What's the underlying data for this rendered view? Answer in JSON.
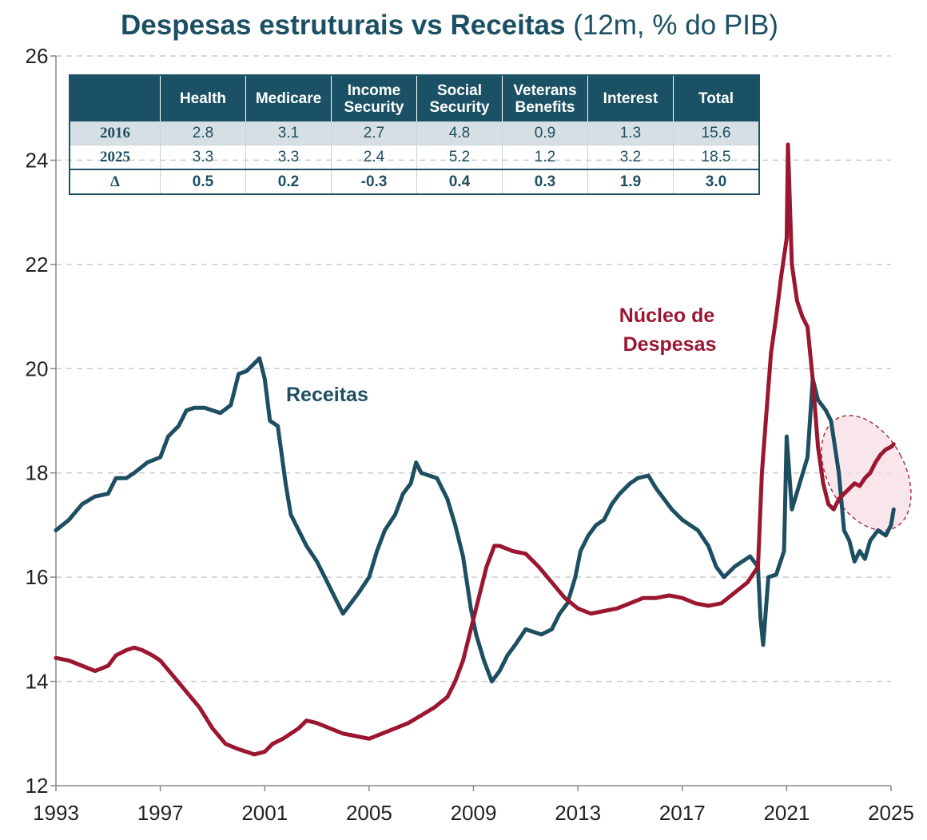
{
  "title": {
    "bold": "Despesas estruturais vs Receitas",
    "rest": " (12m, % do PIB)"
  },
  "colors": {
    "receitas": "#1d4f61",
    "despesas": "#9b1630",
    "grid": "#cccccc",
    "highlight": "#f6dde3",
    "highlight_border": "#a8324a"
  },
  "table": {
    "headers": [
      "",
      "Health",
      "Medicare",
      "Income Security",
      "Social Security",
      "Veterans Benefits",
      "Interest",
      "Total"
    ],
    "rows": [
      {
        "label": "2016",
        "values": [
          "2.8",
          "3.1",
          "2.7",
          "4.8",
          "0.9",
          "1.3",
          "15.6"
        ]
      },
      {
        "label": "2025",
        "values": [
          "3.3",
          "3.3",
          "2.4",
          "5.2",
          "1.2",
          "3.2",
          "18.5"
        ]
      },
      {
        "label": "Δ",
        "values": [
          "0.5",
          "0.2",
          "-0.3",
          "0.4",
          "0.3",
          "1.9",
          "3.0"
        ]
      }
    ]
  },
  "chart_data": {
    "type": "line",
    "title": "Despesas estruturais vs Receitas (12m, % do PIB)",
    "xlabel": "",
    "ylabel": "",
    "xlim": [
      1993,
      2025
    ],
    "ylim": [
      12,
      26
    ],
    "x_ticks": [
      "1993",
      "1997",
      "2001",
      "2005",
      "2009",
      "2013",
      "2017",
      "2021",
      "2025"
    ],
    "y_ticks": [
      "12",
      "14",
      "16",
      "18",
      "20",
      "22",
      "24",
      "26"
    ],
    "grid": "horizontal dashed",
    "annotations": [
      "Receitas",
      "Núcleo de Despesas"
    ],
    "highlight_region": {
      "x": [
        2023.0,
        2025.1
      ],
      "y": [
        17.0,
        19.0
      ]
    },
    "series": [
      {
        "name": "Receitas",
        "color": "#1d4f61",
        "points": [
          [
            1993.0,
            16.9
          ],
          [
            1993.5,
            17.1
          ],
          [
            1994.0,
            17.4
          ],
          [
            1994.5,
            17.55
          ],
          [
            1995.0,
            17.6
          ],
          [
            1995.3,
            17.9
          ],
          [
            1995.7,
            17.9
          ],
          [
            1996.0,
            18.0
          ],
          [
            1996.5,
            18.2
          ],
          [
            1997.0,
            18.3
          ],
          [
            1997.3,
            18.7
          ],
          [
            1997.7,
            18.9
          ],
          [
            1998.0,
            19.2
          ],
          [
            1998.3,
            19.25
          ],
          [
            1998.7,
            19.25
          ],
          [
            1999.0,
            19.2
          ],
          [
            1999.3,
            19.15
          ],
          [
            1999.7,
            19.3
          ],
          [
            2000.0,
            19.9
          ],
          [
            2000.3,
            19.95
          ],
          [
            2000.6,
            20.1
          ],
          [
            2000.8,
            20.2
          ],
          [
            2001.0,
            19.8
          ],
          [
            2001.2,
            19.0
          ],
          [
            2001.5,
            18.9
          ],
          [
            2001.8,
            17.8
          ],
          [
            2002.0,
            17.2
          ],
          [
            2002.3,
            16.9
          ],
          [
            2002.6,
            16.6
          ],
          [
            2003.0,
            16.3
          ],
          [
            2003.3,
            16.0
          ],
          [
            2003.7,
            15.6
          ],
          [
            2004.0,
            15.3
          ],
          [
            2004.3,
            15.5
          ],
          [
            2004.6,
            15.7
          ],
          [
            2005.0,
            16.0
          ],
          [
            2005.3,
            16.5
          ],
          [
            2005.6,
            16.9
          ],
          [
            2006.0,
            17.2
          ],
          [
            2006.3,
            17.6
          ],
          [
            2006.6,
            17.8
          ],
          [
            2006.8,
            18.2
          ],
          [
            2007.0,
            18.0
          ],
          [
            2007.3,
            17.95
          ],
          [
            2007.6,
            17.9
          ],
          [
            2008.0,
            17.5
          ],
          [
            2008.3,
            17.0
          ],
          [
            2008.6,
            16.4
          ],
          [
            2008.9,
            15.4
          ],
          [
            2009.1,
            14.9
          ],
          [
            2009.4,
            14.4
          ],
          [
            2009.7,
            14.0
          ],
          [
            2010.0,
            14.2
          ],
          [
            2010.3,
            14.5
          ],
          [
            2010.6,
            14.7
          ],
          [
            2011.0,
            15.0
          ],
          [
            2011.3,
            14.95
          ],
          [
            2011.6,
            14.9
          ],
          [
            2012.0,
            15.0
          ],
          [
            2012.3,
            15.3
          ],
          [
            2012.6,
            15.5
          ],
          [
            2012.9,
            16.0
          ],
          [
            2013.1,
            16.5
          ],
          [
            2013.4,
            16.8
          ],
          [
            2013.7,
            17.0
          ],
          [
            2014.0,
            17.1
          ],
          [
            2014.3,
            17.4
          ],
          [
            2014.6,
            17.6
          ],
          [
            2015.0,
            17.8
          ],
          [
            2015.3,
            17.9
          ],
          [
            2015.7,
            17.95
          ],
          [
            2016.0,
            17.7
          ],
          [
            2016.3,
            17.5
          ],
          [
            2016.6,
            17.3
          ],
          [
            2017.0,
            17.1
          ],
          [
            2017.3,
            17.0
          ],
          [
            2017.6,
            16.9
          ],
          [
            2018.0,
            16.6
          ],
          [
            2018.3,
            16.2
          ],
          [
            2018.6,
            16.0
          ],
          [
            2019.0,
            16.2
          ],
          [
            2019.3,
            16.3
          ],
          [
            2019.6,
            16.4
          ],
          [
            2019.9,
            16.2
          ],
          [
            2020.0,
            15.2
          ],
          [
            2020.1,
            14.7
          ],
          [
            2020.3,
            16.0
          ],
          [
            2020.6,
            16.05
          ],
          [
            2020.9,
            16.5
          ],
          [
            2021.0,
            18.7
          ],
          [
            2021.2,
            17.3
          ],
          [
            2021.5,
            17.8
          ],
          [
            2021.8,
            18.3
          ],
          [
            2022.0,
            19.8
          ],
          [
            2022.2,
            19.4
          ],
          [
            2022.5,
            19.2
          ],
          [
            2022.7,
            19.0
          ],
          [
            2023.0,
            18.0
          ],
          [
            2023.2,
            16.9
          ],
          [
            2023.4,
            16.7
          ],
          [
            2023.6,
            16.3
          ],
          [
            2023.8,
            16.5
          ],
          [
            2024.0,
            16.35
          ],
          [
            2024.2,
            16.7
          ],
          [
            2024.5,
            16.9
          ],
          [
            2024.8,
            16.8
          ],
          [
            2025.0,
            17.0
          ],
          [
            2025.1,
            17.3
          ]
        ]
      },
      {
        "name": "Núcleo de Despesas",
        "color": "#9b1630",
        "points": [
          [
            1993.0,
            14.45
          ],
          [
            1993.5,
            14.4
          ],
          [
            1994.0,
            14.3
          ],
          [
            1994.5,
            14.2
          ],
          [
            1995.0,
            14.3
          ],
          [
            1995.3,
            14.5
          ],
          [
            1995.7,
            14.6
          ],
          [
            1996.0,
            14.65
          ],
          [
            1996.3,
            14.6
          ],
          [
            1996.7,
            14.5
          ],
          [
            1997.0,
            14.4
          ],
          [
            1997.5,
            14.1
          ],
          [
            1998.0,
            13.8
          ],
          [
            1998.5,
            13.5
          ],
          [
            1999.0,
            13.1
          ],
          [
            1999.5,
            12.8
          ],
          [
            2000.0,
            12.7
          ],
          [
            2000.3,
            12.65
          ],
          [
            2000.6,
            12.6
          ],
          [
            2001.0,
            12.65
          ],
          [
            2001.3,
            12.8
          ],
          [
            2001.7,
            12.9
          ],
          [
            2002.0,
            13.0
          ],
          [
            2002.3,
            13.1
          ],
          [
            2002.6,
            13.25
          ],
          [
            2003.0,
            13.2
          ],
          [
            2003.5,
            13.1
          ],
          [
            2004.0,
            13.0
          ],
          [
            2004.5,
            12.95
          ],
          [
            2005.0,
            12.9
          ],
          [
            2005.5,
            13.0
          ],
          [
            2006.0,
            13.1
          ],
          [
            2006.5,
            13.2
          ],
          [
            2007.0,
            13.35
          ],
          [
            2007.5,
            13.5
          ],
          [
            2008.0,
            13.7
          ],
          [
            2008.3,
            14.0
          ],
          [
            2008.6,
            14.4
          ],
          [
            2008.9,
            15.0
          ],
          [
            2009.2,
            15.6
          ],
          [
            2009.5,
            16.2
          ],
          [
            2009.8,
            16.6
          ],
          [
            2010.0,
            16.6
          ],
          [
            2010.5,
            16.5
          ],
          [
            2011.0,
            16.45
          ],
          [
            2011.5,
            16.2
          ],
          [
            2012.0,
            15.9
          ],
          [
            2012.5,
            15.6
          ],
          [
            2013.0,
            15.4
          ],
          [
            2013.5,
            15.3
          ],
          [
            2014.0,
            15.35
          ],
          [
            2014.5,
            15.4
          ],
          [
            2015.0,
            15.5
          ],
          [
            2015.5,
            15.6
          ],
          [
            2016.0,
            15.6
          ],
          [
            2016.5,
            15.65
          ],
          [
            2017.0,
            15.6
          ],
          [
            2017.5,
            15.5
          ],
          [
            2018.0,
            15.45
          ],
          [
            2018.5,
            15.5
          ],
          [
            2019.0,
            15.7
          ],
          [
            2019.5,
            15.9
          ],
          [
            2019.9,
            16.2
          ],
          [
            2020.05,
            18.0
          ],
          [
            2020.2,
            19.0
          ],
          [
            2020.4,
            20.3
          ],
          [
            2020.6,
            21.0
          ],
          [
            2020.8,
            21.8
          ],
          [
            2021.0,
            22.5
          ],
          [
            2021.05,
            24.3
          ],
          [
            2021.2,
            22.0
          ],
          [
            2021.4,
            21.3
          ],
          [
            2021.6,
            21.0
          ],
          [
            2021.8,
            20.8
          ],
          [
            2022.0,
            19.8
          ],
          [
            2022.2,
            18.5
          ],
          [
            2022.4,
            17.8
          ],
          [
            2022.6,
            17.4
          ],
          [
            2022.8,
            17.3
          ],
          [
            2023.0,
            17.5
          ],
          [
            2023.2,
            17.6
          ],
          [
            2023.4,
            17.7
          ],
          [
            2023.6,
            17.8
          ],
          [
            2023.8,
            17.75
          ],
          [
            2024.0,
            17.9
          ],
          [
            2024.2,
            18.0
          ],
          [
            2024.4,
            18.2
          ],
          [
            2024.6,
            18.35
          ],
          [
            2024.8,
            18.45
          ],
          [
            2025.0,
            18.5
          ],
          [
            2025.1,
            18.55
          ]
        ]
      }
    ]
  }
}
